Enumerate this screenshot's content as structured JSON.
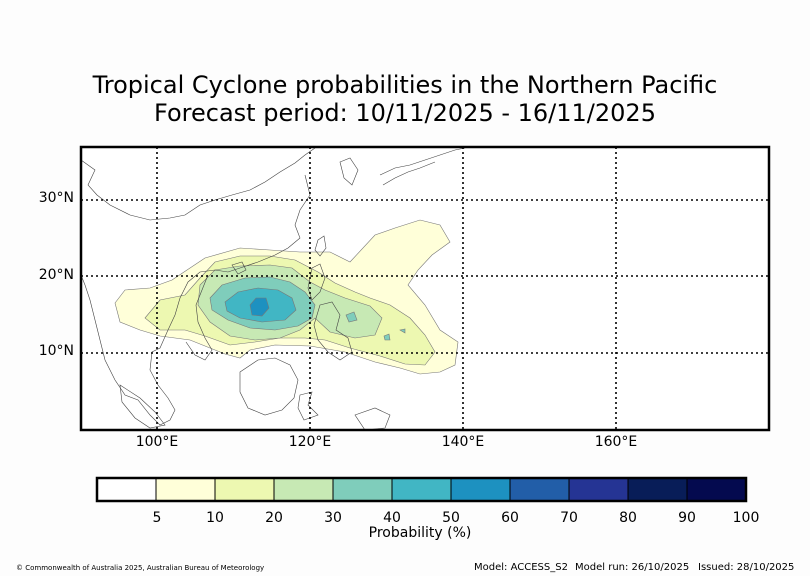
{
  "title": {
    "line1": "Tropical Cyclone probabilities in the Northern Pacific",
    "line2": "Forecast period: 10/11/2025 - 16/11/2025"
  },
  "map": {
    "lat_labels": [
      "30°N",
      "20°N",
      "10°N"
    ],
    "lon_labels": [
      "100°E",
      "120°E",
      "140°E",
      "160°E"
    ],
    "gridlines": "dotted",
    "lon_range": [
      90,
      180
    ],
    "lat_range": [
      0,
      37
    ]
  },
  "colorbar": {
    "title": "Probability (%)",
    "ticks": [
      "5",
      "10",
      "20",
      "30",
      "40",
      "50",
      "60",
      "70",
      "80",
      "90",
      "100"
    ],
    "colors": [
      "#ffffff",
      "#ffffd9",
      "#edf8b1",
      "#c7e9b4",
      "#7fcdbb",
      "#41b6c4",
      "#1d91c0",
      "#225ea8",
      "#253494",
      "#081d58",
      "#040a4f"
    ]
  },
  "footer": {
    "copyright": "© Commonwealth of Australia 2025, Australian Bureau of Meteorology",
    "model": "Model: ACCESS_S2",
    "model_run": "Model run: 26/10/2025",
    "issued": "Issued: 28/10/2025"
  }
}
